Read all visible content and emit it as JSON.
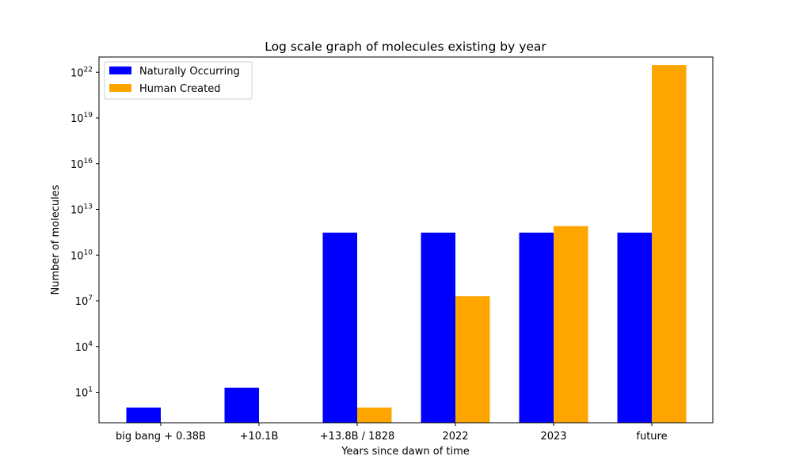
{
  "chart_data": {
    "type": "bar",
    "title": "Log scale graph of molecules existing by year",
    "xlabel": "Years since dawn of time",
    "ylabel": "Number of molecules",
    "yscale": "log",
    "ylim": [
      0.1,
      1e+23
    ],
    "yticks": [
      {
        "value": 10,
        "base": "10",
        "exp": "1"
      },
      {
        "value": 10000,
        "base": "10",
        "exp": "4"
      },
      {
        "value": 10000000.0,
        "base": "10",
        "exp": "7"
      },
      {
        "value": 10000000000.0,
        "base": "10",
        "exp": "10"
      },
      {
        "value": 10000000000000.0,
        "base": "10",
        "exp": "13"
      },
      {
        "value": 1e+16,
        "base": "10",
        "exp": "16"
      },
      {
        "value": 1e+19,
        "base": "10",
        "exp": "19"
      },
      {
        "value": 1e+22,
        "base": "10",
        "exp": "22"
      }
    ],
    "categories": [
      "big bang + 0.38B",
      "+10.1B",
      "+13.8B / 1828",
      "2022",
      "2023",
      "future"
    ],
    "series": [
      {
        "name": "Naturally Occurring",
        "color": "#0000ff",
        "values": [
          1,
          20,
          300000000000.0,
          300000000000.0,
          300000000000.0,
          300000000000.0
        ]
      },
      {
        "name": "Human Created",
        "color": "#ffa500",
        "values": [
          null,
          null,
          1,
          20000000,
          800000000000.0,
          3e+22
        ]
      }
    ],
    "legend_position": "top-left",
    "grid": false
  }
}
